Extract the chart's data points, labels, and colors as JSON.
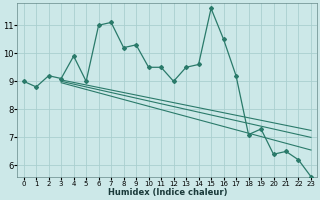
{
  "xlabel": "Humidex (Indice chaleur)",
  "ylabel": "",
  "background_color": "#cce8e8",
  "grid_color": "#aacfcf",
  "line_color": "#2a7a6a",
  "xlim": [
    -0.5,
    23.5
  ],
  "ylim": [
    5.6,
    11.8
  ],
  "xticks": [
    0,
    1,
    2,
    3,
    4,
    5,
    6,
    7,
    8,
    9,
    10,
    11,
    12,
    13,
    14,
    15,
    16,
    17,
    18,
    19,
    20,
    21,
    22,
    23
  ],
  "yticks": [
    6,
    7,
    8,
    9,
    10,
    11
  ],
  "main_line_x": [
    0,
    1,
    2,
    3,
    4,
    5,
    6,
    7,
    8,
    9,
    10,
    11,
    12,
    13,
    14,
    15,
    16,
    17,
    18,
    19,
    20,
    21,
    22,
    23
  ],
  "main_line_y": [
    9.0,
    8.8,
    9.2,
    9.1,
    9.9,
    9.0,
    11.0,
    11.1,
    10.2,
    10.3,
    9.5,
    9.5,
    9.0,
    9.5,
    9.6,
    11.6,
    10.5,
    9.2,
    7.1,
    7.3,
    6.4,
    6.5,
    6.2,
    5.6
  ],
  "reg_lines": [
    {
      "x0": 3,
      "y0": 9.05,
      "x1": 23,
      "y1": 7.25
    },
    {
      "x0": 3,
      "y0": 9.0,
      "x1": 23,
      "y1": 7.0
    },
    {
      "x0": 3,
      "y0": 8.95,
      "x1": 23,
      "y1": 6.55
    }
  ],
  "xtick_fontsize": 5.0,
  "ytick_fontsize": 6.0,
  "xlabel_fontsize": 6.0
}
